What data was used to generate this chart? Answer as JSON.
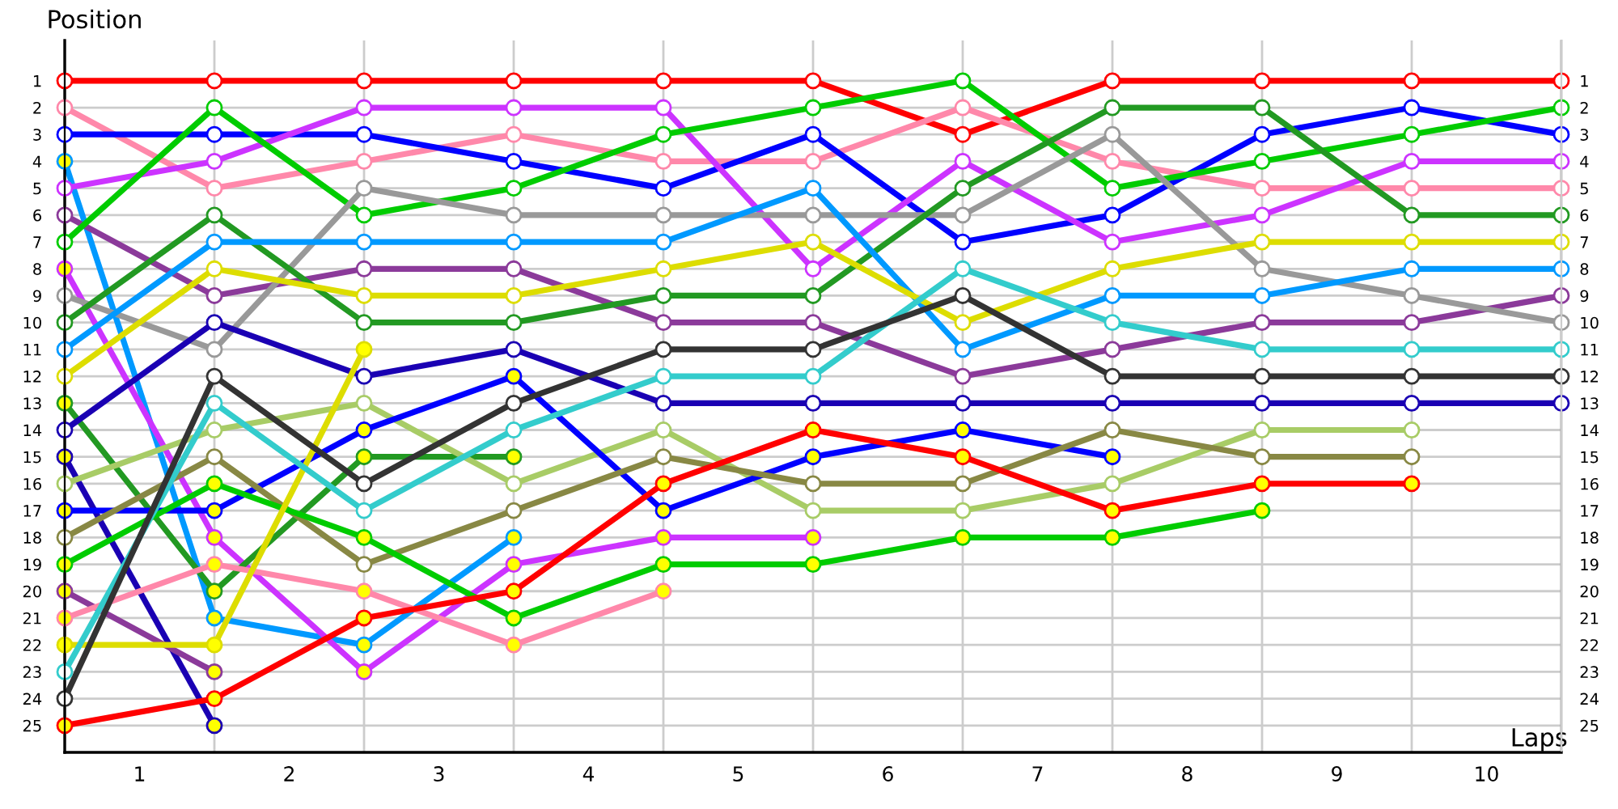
{
  "chart_data": {
    "type": "line",
    "xlabel": "Laps",
    "ylabel": "Position",
    "x": [
      0,
      1,
      2,
      3,
      4,
      5,
      6,
      7,
      8,
      9,
      10
    ],
    "xlim": [
      0,
      10
    ],
    "xticks": [
      {
        "value": 0.5,
        "label": "1"
      },
      {
        "value": 1.5,
        "label": "2"
      },
      {
        "value": 2.5,
        "label": "3"
      },
      {
        "value": 3.5,
        "label": "4"
      },
      {
        "value": 4.5,
        "label": "5"
      },
      {
        "value": 5.5,
        "label": "6"
      },
      {
        "value": 6.5,
        "label": "7"
      },
      {
        "value": 7.5,
        "label": "8"
      },
      {
        "value": 8.5,
        "label": "9"
      },
      {
        "value": 9.5,
        "label": "10"
      }
    ],
    "ylim": [
      26,
      -0.5
    ],
    "yticks": [
      1,
      2,
      3,
      4,
      5,
      6,
      7,
      8,
      9,
      10,
      11,
      12,
      13,
      14,
      15,
      16,
      17,
      18,
      19,
      20,
      21,
      22,
      23,
      24,
      25
    ],
    "y2lim": [
      26,
      -0.5
    ],
    "y2ticks": [
      1,
      2,
      3,
      4,
      5,
      6,
      7,
      8,
      9,
      10,
      11,
      12,
      13,
      14,
      15,
      16,
      17,
      18,
      19,
      20,
      21,
      22,
      23,
      24,
      25
    ],
    "grid": true,
    "marker": "circle",
    "line_style": "solid",
    "series": [
      {
        "color": "#ff0000",
        "values": [
          1,
          1,
          1,
          1,
          1,
          1,
          3,
          1,
          1,
          1,
          1
        ],
        "colors": [
          "#ffffff",
          "#ffffff",
          "#ffffff",
          "#ffffff",
          "#ffffff",
          "#ffffff",
          "#ffffff",
          "#ffffff",
          "#ffffff",
          "#ffffff",
          "#ffffff"
        ]
      },
      {
        "color": "#ff88aa",
        "values": [
          2,
          5,
          4,
          3,
          4,
          4,
          2,
          4,
          5,
          5,
          5
        ],
        "colors": [
          "#ffffff",
          "#ffffff",
          "#ffffff",
          "#ffffff",
          "#ffffff",
          "#ffffff",
          "#ffffff",
          "#ffffff",
          "#ffffff",
          "#ffffff",
          "#ffffff"
        ]
      },
      {
        "color": "#0000ff",
        "values": [
          3,
          3,
          3,
          4,
          5,
          3,
          7,
          6,
          3,
          2,
          3
        ],
        "colors": [
          "#ffffff",
          "#ffffff",
          "#ffffff",
          "#ffffff",
          "#ffffff",
          "#ffffff",
          "#ffffff",
          "#ffffff",
          "#ffffff",
          "#ffffff",
          "#ffffff"
        ]
      },
      {
        "color": "#0099ff",
        "values": [
          4,
          21,
          22,
          18,
          null,
          null,
          null,
          null,
          null,
          null,
          null
        ],
        "colors": [
          "#ffff00",
          "#ffff00",
          "#ffff00",
          "#ffff00",
          null,
          null,
          null,
          null,
          null,
          null,
          null
        ]
      },
      {
        "color": "#cc33ff",
        "values": [
          5,
          4,
          2,
          2,
          2,
          8,
          4,
          7,
          6,
          4,
          4
        ],
        "colors": [
          "#ffffff",
          "#ffffff",
          "#ffffff",
          "#ffffff",
          "#ffffff",
          "#ffffff",
          "#ffffff",
          "#ffffff",
          "#ffffff",
          "#ffffff",
          "#ffffff"
        ]
      },
      {
        "color": "#8b3a9a",
        "values": [
          6,
          9,
          8,
          8,
          10,
          10,
          12,
          11,
          10,
          10,
          9
        ],
        "colors": [
          "#ffffff",
          "#ffffff",
          "#ffffff",
          "#ffffff",
          "#ffffff",
          "#ffffff",
          "#ffffff",
          "#ffffff",
          "#ffffff",
          "#ffffff",
          "#ffffff"
        ]
      },
      {
        "color": "#00cc00",
        "values": [
          7,
          2,
          6,
          5,
          3,
          2,
          1,
          5,
          4,
          3,
          2
        ],
        "colors": [
          "#ffffff",
          "#ffffff",
          "#ffffff",
          "#ffffff",
          "#ffffff",
          "#ffffff",
          "#ffffff",
          "#ffffff",
          "#ffffff",
          "#ffffff",
          "#ffffff"
        ]
      },
      {
        "color": "#cc33ff",
        "values": [
          8,
          18,
          23,
          19,
          18,
          18,
          null,
          null,
          null,
          null,
          null
        ],
        "colors": [
          "#ffff00",
          "#ffff00",
          "#ffff00",
          "#ffff00",
          "#ffff00",
          "#ffff00",
          null,
          null,
          null,
          null,
          null
        ]
      },
      {
        "color": "#999999",
        "values": [
          9,
          11,
          5,
          6,
          6,
          6,
          6,
          3,
          8,
          9,
          10
        ],
        "colors": [
          "#ffffff",
          "#ffffff",
          "#ffffff",
          "#ffffff",
          "#ffffff",
          "#ffffff",
          "#ffffff",
          "#ffffff",
          "#ffffff",
          "#ffffff",
          "#ffffff"
        ]
      },
      {
        "color": "#229922",
        "values": [
          10,
          6,
          10,
          10,
          9,
          9,
          5,
          2,
          2,
          6,
          6
        ],
        "colors": [
          "#ffffff",
          "#ffffff",
          "#ffffff",
          "#ffffff",
          "#ffffff",
          "#ffffff",
          "#ffffff",
          "#ffffff",
          "#ffffff",
          "#ffffff",
          "#ffffff"
        ]
      },
      {
        "color": "#0099ff",
        "values": [
          11,
          7,
          7,
          7,
          7,
          5,
          11,
          9,
          9,
          8,
          8
        ],
        "colors": [
          "#ffffff",
          "#ffffff",
          "#ffffff",
          "#ffffff",
          "#ffffff",
          "#ffffff",
          "#ffffff",
          "#ffffff",
          "#ffffff",
          "#ffffff",
          "#ffffff"
        ]
      },
      {
        "color": "#dddd00",
        "values": [
          12,
          8,
          9,
          9,
          8,
          7,
          10,
          8,
          7,
          7,
          7
        ],
        "colors": [
          "#ffffff",
          "#ffffff",
          "#ffffff",
          "#ffffff",
          "#ffffff",
          "#ffffff",
          "#ffffff",
          "#ffffff",
          "#ffffff",
          "#ffffff",
          "#ffffff"
        ]
      },
      {
        "color": "#229922",
        "values": [
          13,
          20,
          15,
          15,
          null,
          null,
          null,
          null,
          null,
          null,
          null
        ],
        "colors": [
          "#ffff00",
          "#ffff00",
          "#ffff00",
          "#ffff00",
          null,
          null,
          null,
          null,
          null,
          null,
          null
        ]
      },
      {
        "color": "#1a00b3",
        "values": [
          14,
          10,
          12,
          11,
          13,
          13,
          13,
          13,
          13,
          13,
          13
        ],
        "colors": [
          "#ffffff",
          "#ffffff",
          "#ffffff",
          "#ffffff",
          "#ffffff",
          "#ffffff",
          "#ffffff",
          "#ffffff",
          "#ffffff",
          "#ffffff",
          "#ffffff"
        ]
      },
      {
        "color": "#1a00b3",
        "values": [
          15,
          25,
          null,
          null,
          null,
          null,
          null,
          null,
          null,
          null,
          null
        ],
        "colors": [
          "#ffff00",
          "#ffff00",
          null,
          null,
          null,
          null,
          null,
          null,
          null,
          null,
          null
        ]
      },
      {
        "color": "#a8cc66",
        "values": [
          16,
          14,
          13,
          16,
          14,
          17,
          17,
          16,
          14,
          14,
          null
        ],
        "colors": [
          "#ffffff",
          "#ffffff",
          "#ffffff",
          "#ffffff",
          "#ffffff",
          "#ffffff",
          "#ffffff",
          "#ffffff",
          "#ffffff",
          "#ffffff",
          null
        ]
      },
      {
        "color": "#0000ff",
        "values": [
          17,
          17,
          14,
          12,
          17,
          15,
          14,
          15,
          null,
          null,
          null
        ],
        "colors": [
          "#ffff00",
          "#ffff00",
          "#ffff00",
          "#ffff00",
          "#ffff00",
          "#ffff00",
          "#ffff00",
          "#ffff00",
          null,
          null,
          null
        ]
      },
      {
        "color": "#888844",
        "values": [
          18,
          15,
          19,
          17,
          15,
          16,
          16,
          14,
          15,
          15,
          null
        ],
        "colors": [
          "#ffffff",
          "#ffffff",
          "#ffffff",
          "#ffffff",
          "#ffffff",
          "#ffffff",
          "#ffffff",
          "#ffffff",
          "#ffffff",
          "#ffffff",
          null
        ]
      },
      {
        "color": "#00cc00",
        "values": [
          19,
          16,
          18,
          21,
          19,
          19,
          18,
          18,
          17,
          null,
          null
        ],
        "colors": [
          "#ffff00",
          "#ffff00",
          "#ffff00",
          "#ffff00",
          "#ffff00",
          "#ffff00",
          "#ffff00",
          "#ffff00",
          "#ffff00",
          null,
          null
        ]
      },
      {
        "color": "#8b3a9a",
        "values": [
          20,
          23,
          null,
          null,
          null,
          null,
          null,
          null,
          null,
          null,
          null
        ],
        "colors": [
          "#ffff00",
          "#ffff00",
          null,
          null,
          null,
          null,
          null,
          null,
          null,
          null,
          null
        ]
      },
      {
        "color": "#ff88aa",
        "values": [
          21,
          19,
          20,
          22,
          20,
          null,
          null,
          null,
          null,
          null,
          null
        ],
        "colors": [
          "#ffff00",
          "#ffff00",
          "#ffff00",
          "#ffff00",
          "#ffff00",
          null,
          null,
          null,
          null,
          null,
          null
        ]
      },
      {
        "color": "#dddd00",
        "values": [
          22,
          22,
          11,
          null,
          null,
          null,
          null,
          null,
          null,
          null,
          null
        ],
        "colors": [
          "#ffff00",
          "#ffff00",
          "#ffff00",
          null,
          null,
          null,
          null,
          null,
          null,
          null,
          null
        ]
      },
      {
        "color": "#33cccc",
        "values": [
          23,
          13,
          17,
          14,
          12,
          12,
          8,
          10,
          11,
          11,
          11
        ],
        "colors": [
          "#ffffff",
          "#ffffff",
          "#ffffff",
          "#ffffff",
          "#ffffff",
          "#ffffff",
          "#ffffff",
          "#ffffff",
          "#ffffff",
          "#ffffff",
          "#ffffff"
        ]
      },
      {
        "color": "#333333",
        "values": [
          24,
          12,
          16,
          13,
          11,
          11,
          9,
          12,
          12,
          12,
          12
        ],
        "colors": [
          "#ffffff",
          "#ffffff",
          "#ffffff",
          "#ffffff",
          "#ffffff",
          "#ffffff",
          "#ffffff",
          "#ffffff",
          "#ffffff",
          "#ffffff",
          "#ffffff"
        ]
      },
      {
        "color": "#ff0000",
        "values": [
          25,
          24,
          21,
          20,
          16,
          14,
          15,
          17,
          16,
          16,
          null
        ],
        "colors": [
          "#ffff00",
          "#ffff00",
          "#ffff00",
          "#ffff00",
          "#ffff00",
          "#ffff00",
          "#ffff00",
          "#ffff00",
          "#ffff00",
          "#ffff00",
          null
        ]
      }
    ]
  }
}
